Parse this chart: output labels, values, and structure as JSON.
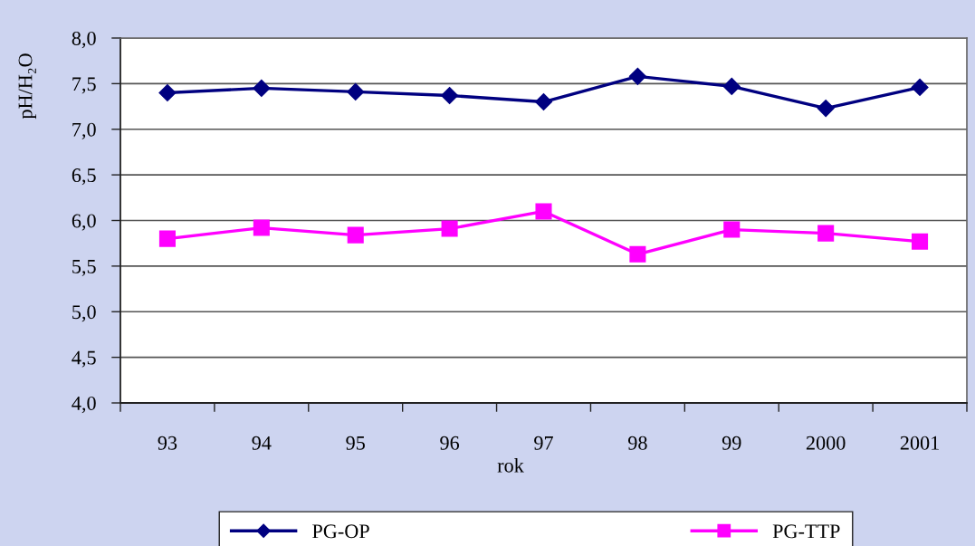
{
  "chart_data": {
    "type": "line",
    "xlabel": "rok",
    "ylabel": "pH/H₂O",
    "categories": [
      "93",
      "94",
      "95",
      "96",
      "97",
      "98",
      "99",
      "2000",
      "2001"
    ],
    "series": [
      {
        "name": "PG-OP",
        "color": "#000080",
        "marker": "diamond",
        "values": [
          7.4,
          7.45,
          7.41,
          7.37,
          7.3,
          7.58,
          7.47,
          7.23,
          7.46
        ]
      },
      {
        "name": "PG-TTP",
        "color": "#ff00ff",
        "marker": "square",
        "values": [
          5.8,
          5.92,
          5.84,
          5.91,
          6.1,
          5.63,
          5.9,
          5.86,
          5.77
        ]
      }
    ],
    "ylim": [
      4.0,
      8.0
    ],
    "yticks": [
      {
        "value": 4.0,
        "label": "4,0"
      },
      {
        "value": 4.5,
        "label": "4,5"
      },
      {
        "value": 5.0,
        "label": "5,0"
      },
      {
        "value": 5.5,
        "label": "5,5"
      },
      {
        "value": 6.0,
        "label": "6,0"
      },
      {
        "value": 6.5,
        "label": "6,5"
      },
      {
        "value": 7.0,
        "label": "7,0"
      },
      {
        "value": 7.5,
        "label": "7,5"
      },
      {
        "value": 8.0,
        "label": "8,0"
      }
    ],
    "grid": "y",
    "legend": "bottom",
    "line_style": "solid"
  }
}
